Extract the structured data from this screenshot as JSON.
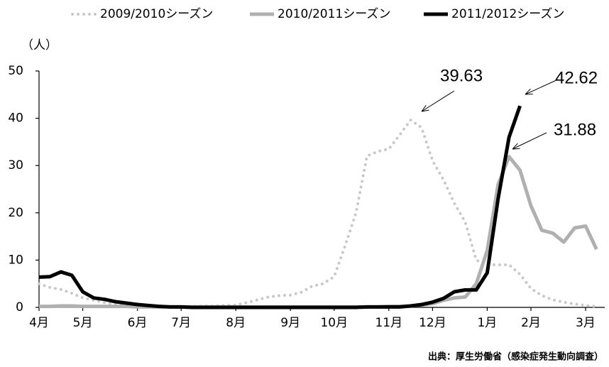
{
  "chart_data": {
    "type": "line",
    "y_label": "（人）",
    "source": "出典：厚生労働省（感染症発生動向調査）",
    "categories": [
      "4月",
      null,
      null,
      null,
      "5月",
      null,
      null,
      null,
      null,
      "6月",
      null,
      null,
      null,
      "7月",
      null,
      null,
      null,
      null,
      "8月",
      null,
      null,
      null,
      null,
      "9月",
      null,
      null,
      null,
      "10月",
      null,
      null,
      null,
      null,
      "11月",
      null,
      null,
      null,
      "12月",
      null,
      null,
      null,
      null,
      "1月",
      null,
      null,
      null,
      "2月",
      null,
      null,
      null,
      null,
      "3月",
      null
    ],
    "ylim": [
      0,
      50
    ],
    "yticks": [
      0,
      10,
      20,
      30,
      40,
      50
    ],
    "series": [
      {
        "name": "2009/2010シーズン",
        "color": "#c8c8c8",
        "style": "dotted",
        "values": [
          5,
          4.2,
          3.8,
          3,
          2,
          1.5,
          1,
          0.6,
          0.4,
          0.3,
          0.2,
          0.2,
          0.2,
          0.2,
          0.2,
          0.3,
          0.3,
          0.4,
          0.5,
          1,
          1.6,
          2.2,
          2.5,
          2.6,
          3.2,
          4.5,
          5,
          6.5,
          13,
          20,
          32,
          33,
          33.5,
          36.5,
          39.63,
          38,
          31,
          27,
          22,
          18,
          10,
          9,
          9,
          9,
          7,
          4,
          2.5,
          1.6,
          1.1,
          0.7,
          0.4,
          0.2
        ]
      },
      {
        "name": "2010/2011シーズン",
        "color": "#b0b0b0",
        "style": "solid",
        "values": [
          0.2,
          0.2,
          0.3,
          0.3,
          0.2,
          0.2,
          0.2,
          0.2,
          0.2,
          0.1,
          0.1,
          0.1,
          0.1,
          0.1,
          0.1,
          0.1,
          0.1,
          0.1,
          0.1,
          0.1,
          0.1,
          0.1,
          0.1,
          0.1,
          0.1,
          0.1,
          0.1,
          0.1,
          0.1,
          0.1,
          0.1,
          0.1,
          0.2,
          0.2,
          0.3,
          0.5,
          0.8,
          1.5,
          2,
          2.2,
          5,
          12,
          26,
          31.88,
          29,
          21.5,
          16.3,
          15.7,
          13.8,
          16.8,
          17.2,
          12.3
        ]
      },
      {
        "name": "2011/2012シーズン",
        "color": "#000000",
        "style": "solid",
        "values": [
          6.4,
          6.5,
          7.5,
          6.8,
          3.3,
          2,
          1.7,
          1.2,
          0.9,
          0.6,
          0.4,
          0.2,
          0.1,
          0.1,
          0,
          0,
          0,
          0,
          0,
          0,
          0,
          0,
          0,
          0,
          0,
          0,
          0,
          0,
          0,
          0,
          0.1,
          0.1,
          0.1,
          0.1,
          0.3,
          0.6,
          1.1,
          1.9,
          3.3,
          3.7,
          3.7,
          7.3,
          23,
          36,
          42.62,
          null,
          null,
          null,
          null,
          null,
          null,
          null
        ]
      }
    ],
    "annotations": [
      "39.63",
      "42.62",
      "31.88"
    ]
  }
}
